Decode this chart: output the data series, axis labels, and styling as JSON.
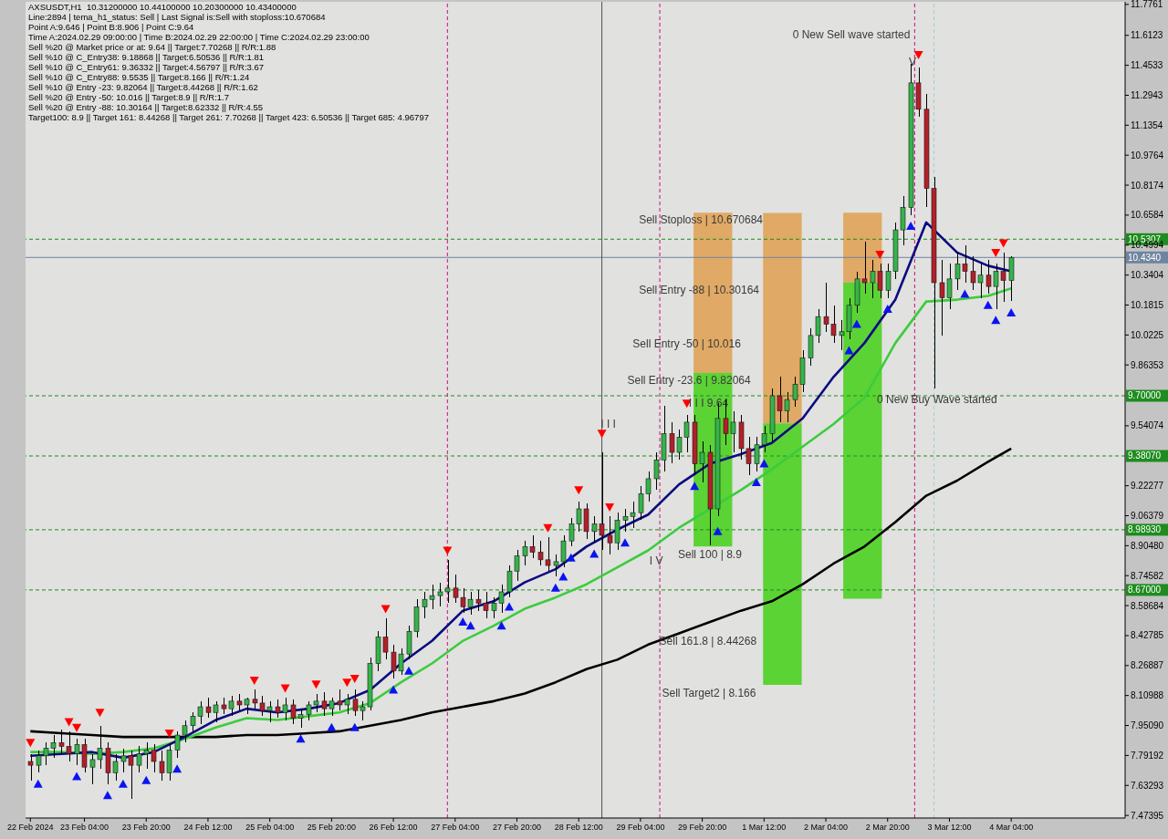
{
  "chart_data": {
    "type": "candlestick",
    "title": "AXSUSDT,H1  10.31200000 10.44100000 10.20300000 10.43400000",
    "subtitle": "Line:2894 | tema_h1_status: Sell | Last Signal is:Sell with stoploss:10.670684\nPoint A:9.646 | Point B:8.906 | Point C:9.64\nTime A:2024.02.29 09:00:00 | Time B:2024.02.29 22:00:00 | Time C:2024.02.29 23:00:00\nSell %20 @ Market price or at: 9.64 || Target:7.70268 || R/R:1.88\nSell %10 @ C_Entry38: 9.18868 || Target:6.50536 || R/R:1.81\nSell %10 @ C_Entry61: 9.36332 || Target:4.56797 || R/R:3.67\nSell %10 @ C_Entry88: 9.5535 || Target:8.166 || R/R:1.24\nSell %10 @ Entry -23: 9.82064 || Target:8.44268 || R/R:1.62\nSell %20 @ Entry -50: 10.016 || Target:8.9 || R/R:1.7\nSell %20 @ Entry -88: 10.30164 || Target:8.62332 || R/R:4.55\nTarget100: 8.9 || Target 161: 8.44268 || Target 261: 7.70268 || Target 423: 6.50536 || Target 685: 4.96797",
    "annotations": [
      "0 New Sell wave started",
      "Sell Stoploss | 10.670684",
      "Sell Entry -88 | 10.30164",
      "Sell Entry -50 | 10.016",
      "Sell Entry -23.6 | 9.82064",
      "I I I",
      "I V",
      "Sell 100 | 8.9",
      "Sell 161.8 | 8.44268",
      "Sell Target2 | 8.166",
      {
        "text": "V",
        "x": "2024-03-03T01:30",
        "y": 11.47
      },
      {
        "text": "0 New Buy Wave started",
        "x": "2024-03-02T17:15",
        "y": 9.68
      },
      {
        "text": "I I I 9.64",
        "x": "2024-02-29T16:30",
        "y": 9.66
      }
    ],
    "x": [
      "2024-02-22T14:00",
      "2024-02-22T16:00",
      "2024-02-22T18:00",
      "2024-02-22T20:00",
      "2024-02-22T22:00",
      "2024-02-23T00:00",
      "2024-02-23T02:00",
      "2024-02-23T04:00",
      "2024-02-23T06:00",
      "2024-02-23T08:00",
      "2024-02-23T10:00",
      "2024-02-23T12:00",
      "2024-02-23T14:00",
      "2024-02-23T16:00",
      "2024-02-23T18:00",
      "2024-02-23T20:00",
      "2024-02-23T22:00",
      "2024-02-24T00:00",
      "2024-02-24T02:00",
      "2024-02-24T04:00",
      "2024-02-24T06:00",
      "2024-02-24T08:00",
      "2024-02-24T10:00",
      "2024-02-24T12:00",
      "2024-02-24T14:00",
      "2024-02-24T16:00",
      "2024-02-24T18:00",
      "2024-02-24T20:00",
      "2024-02-24T22:00",
      "2024-02-25T00:00",
      "2024-02-25T02:00",
      "2024-02-25T04:00",
      "2024-02-25T06:00",
      "2024-02-25T08:00",
      "2024-02-25T10:00",
      "2024-02-25T12:00",
      "2024-02-25T14:00",
      "2024-02-25T16:00",
      "2024-02-25T18:00",
      "2024-02-25T20:00",
      "2024-02-25T22:00",
      "2024-02-26T00:00",
      "2024-02-26T02:00",
      "2024-02-26T04:00",
      "2024-02-26T06:00",
      "2024-02-26T08:00",
      "2024-02-26T10:00",
      "2024-02-26T12:00",
      "2024-02-26T14:00",
      "2024-02-26T16:00",
      "2024-02-26T18:00",
      "2024-02-26T20:00",
      "2024-02-26T22:00",
      "2024-02-27T00:00",
      "2024-02-27T02:00",
      "2024-02-27T04:00",
      "2024-02-27T06:00",
      "2024-02-27T08:00",
      "2024-02-27T10:00",
      "2024-02-27T12:00",
      "2024-02-27T14:00",
      "2024-02-27T16:00",
      "2024-02-27T18:00",
      "2024-02-27T20:00",
      "2024-02-27T22:00",
      "2024-02-28T00:00",
      "2024-02-28T02:00",
      "2024-02-28T04:00",
      "2024-02-28T06:00",
      "2024-02-28T08:00",
      "2024-02-28T10:00",
      "2024-02-28T12:00",
      "2024-02-28T14:00",
      "2024-02-28T16:00",
      "2024-02-28T18:00",
      "2024-02-28T20:00",
      "2024-02-28T22:00",
      "2024-02-29T00:00",
      "2024-02-29T02:00",
      "2024-02-29T04:00",
      "2024-02-29T06:00",
      "2024-02-29T08:00",
      "2024-02-29T10:00",
      "2024-02-29T12:00",
      "2024-02-29T14:00",
      "2024-02-29T16:00",
      "2024-02-29T18:00",
      "2024-02-29T20:00",
      "2024-02-29T22:00",
      "2024-03-01T00:00",
      "2024-03-01T02:00",
      "2024-03-01T04:00",
      "2024-03-01T06:00",
      "2024-03-01T08:00",
      "2024-03-01T10:00",
      "2024-03-01T12:00",
      "2024-03-01T14:00",
      "2024-03-01T16:00",
      "2024-03-01T18:00",
      "2024-03-01T20:00",
      "2024-03-01T22:00",
      "2024-03-02T00:00",
      "2024-03-02T02:00",
      "2024-03-02T04:00",
      "2024-03-02T06:00",
      "2024-03-02T08:00",
      "2024-03-02T10:00",
      "2024-03-02T12:00",
      "2024-03-02T14:00",
      "2024-03-02T16:00",
      "2024-03-02T18:00",
      "2024-03-02T20:00",
      "2024-03-02T22:00",
      "2024-03-03T00:00",
      "2024-03-03T02:00",
      "2024-03-03T04:00",
      "2024-03-03T06:00",
      "2024-03-03T08:00",
      "2024-03-03T10:00",
      "2024-03-03T12:00",
      "2024-03-03T14:00",
      "2024-03-03T16:00",
      "2024-03-03T18:00",
      "2024-03-03T20:00",
      "2024-03-03T22:00",
      "2024-03-04T00:00",
      "2024-03-04T02:00",
      "2024-03-04T04:00"
    ],
    "ohlc": [
      [
        7.76,
        7.8,
        7.66,
        7.74
      ],
      [
        7.74,
        7.82,
        7.7,
        7.79
      ],
      [
        7.79,
        7.86,
        7.74,
        7.83
      ],
      [
        7.83,
        7.9,
        7.78,
        7.86
      ],
      [
        7.86,
        7.93,
        7.8,
        7.84
      ],
      [
        7.84,
        7.92,
        7.76,
        7.8
      ],
      [
        7.8,
        7.88,
        7.74,
        7.85
      ],
      [
        7.85,
        7.88,
        7.7,
        7.73
      ],
      [
        7.73,
        7.8,
        7.64,
        7.77
      ],
      [
        7.77,
        7.95,
        7.72,
        7.83
      ],
      [
        7.83,
        7.86,
        7.64,
        7.7
      ],
      [
        7.7,
        7.8,
        7.66,
        7.76
      ],
      [
        7.76,
        7.83,
        7.7,
        7.79
      ],
      [
        7.79,
        7.82,
        7.56,
        7.74
      ],
      [
        7.74,
        7.84,
        7.7,
        7.8
      ],
      [
        7.8,
        7.86,
        7.72,
        7.82
      ],
      [
        7.82,
        7.85,
        7.7,
        7.76
      ],
      [
        7.76,
        7.82,
        7.66,
        7.7
      ],
      [
        7.7,
        7.85,
        7.66,
        7.82
      ],
      [
        7.82,
        7.92,
        7.78,
        7.9
      ],
      [
        7.9,
        7.98,
        7.86,
        7.95
      ],
      [
        7.95,
        8.02,
        7.92,
        8
      ],
      [
        8,
        8.08,
        7.96,
        8.05
      ],
      [
        8.05,
        8.1,
        7.99,
        8.02
      ],
      [
        8.02,
        8.08,
        7.97,
        8.06
      ],
      [
        8.06,
        8.1,
        8.01,
        8.04
      ],
      [
        8.04,
        8.11,
        8,
        8.08
      ],
      [
        8.08,
        8.12,
        8.03,
        8.06
      ],
      [
        8.06,
        8.1,
        8.01,
        8.09
      ],
      [
        8.09,
        8.14,
        8.04,
        8.07
      ],
      [
        8.07,
        8.11,
        8,
        8.03
      ],
      [
        8.03,
        8.08,
        7.97,
        8.05
      ],
      [
        8.05,
        8.09,
        7.99,
        8.02
      ],
      [
        8.02,
        8.1,
        7.98,
        8.06
      ],
      [
        8.06,
        8.09,
        7.96,
        7.99
      ],
      [
        7.99,
        8.04,
        7.94,
        8.01
      ],
      [
        8.01,
        8.08,
        7.98,
        8.06
      ],
      [
        8.06,
        8.12,
        8.02,
        8.08
      ],
      [
        8.08,
        8.13,
        8,
        8.04
      ],
      [
        8.04,
        8.1,
        8,
        8.08
      ],
      [
        8.08,
        8.14,
        8.03,
        8.06
      ],
      [
        8.06,
        8.12,
        8.01,
        8.09
      ],
      [
        8.09,
        8.14,
        8,
        8.03
      ],
      [
        8.03,
        8.08,
        7.98,
        8.05
      ],
      [
        8.05,
        8.31,
        8.03,
        8.28
      ],
      [
        8.28,
        8.45,
        8.24,
        8.42
      ],
      [
        8.42,
        8.52,
        8.3,
        8.34
      ],
      [
        8.34,
        8.38,
        8.2,
        8.24
      ],
      [
        8.24,
        8.36,
        8.22,
        8.33
      ],
      [
        8.33,
        8.48,
        8.3,
        8.45
      ],
      [
        8.45,
        8.62,
        8.42,
        8.58
      ],
      [
        8.58,
        8.66,
        8.52,
        8.62
      ],
      [
        8.62,
        8.7,
        8.57,
        8.64
      ],
      [
        8.64,
        8.71,
        8.58,
        8.66
      ],
      [
        8.66,
        8.83,
        8.6,
        8.68
      ],
      [
        8.68,
        8.75,
        8.6,
        8.63
      ],
      [
        8.63,
        8.68,
        8.55,
        8.58
      ],
      [
        8.58,
        8.66,
        8.54,
        8.62
      ],
      [
        8.62,
        8.67,
        8.56,
        8.6
      ],
      [
        8.6,
        8.66,
        8.52,
        8.56
      ],
      [
        8.56,
        8.63,
        8.52,
        8.6
      ],
      [
        8.6,
        8.7,
        8.55,
        8.66
      ],
      [
        8.66,
        8.8,
        8.63,
        8.77
      ],
      [
        8.77,
        8.88,
        8.72,
        8.85
      ],
      [
        8.85,
        8.93,
        8.8,
        8.9
      ],
      [
        8.9,
        8.96,
        8.84,
        8.87
      ],
      [
        8.87,
        8.93,
        8.8,
        8.83
      ],
      [
        8.83,
        8.95,
        8.77,
        8.8
      ],
      [
        8.8,
        8.86,
        8.74,
        8.82
      ],
      [
        8.82,
        8.96,
        8.79,
        8.93
      ],
      [
        8.93,
        9.05,
        8.9,
        9.02
      ],
      [
        9.02,
        9.14,
        8.98,
        9.1
      ],
      [
        9.1,
        9.13,
        8.94,
        8.98
      ],
      [
        8.98,
        9.06,
        8.92,
        9.02
      ],
      [
        9.02,
        9.4,
        8.88,
        8.96
      ],
      [
        8.96,
        9.06,
        8.86,
        8.92
      ],
      [
        8.92,
        9.08,
        8.88,
        9.04
      ],
      [
        9.04,
        9.1,
        8.98,
        9.06
      ],
      [
        9.06,
        9.14,
        9,
        9.08
      ],
      [
        9.08,
        9.22,
        9.04,
        9.18
      ],
      [
        9.18,
        9.3,
        9.14,
        9.26
      ],
      [
        9.26,
        9.4,
        9.2,
        9.36
      ],
      [
        9.36,
        9.646,
        9.3,
        9.5
      ],
      [
        9.5,
        9.56,
        9.34,
        9.4
      ],
      [
        9.4,
        9.52,
        9.36,
        9.48
      ],
      [
        9.48,
        9.6,
        9.4,
        9.56
      ],
      [
        9.56,
        9.6,
        9.28,
        9.34
      ],
      [
        9.34,
        9.46,
        9.24,
        9.4
      ],
      [
        9.4,
        9.44,
        8.906,
        9.1
      ],
      [
        9.1,
        9.66,
        9.06,
        9.58
      ],
      [
        9.58,
        9.68,
        9.44,
        9.5
      ],
      [
        9.5,
        9.62,
        9.4,
        9.56
      ],
      [
        9.56,
        9.6,
        9.36,
        9.42
      ],
      [
        9.42,
        9.48,
        9.28,
        9.34
      ],
      [
        9.34,
        9.48,
        9.3,
        9.44
      ],
      [
        9.44,
        9.54,
        9.4,
        9.5
      ],
      [
        9.5,
        9.74,
        9.46,
        9.7
      ],
      [
        9.7,
        9.8,
        9.56,
        9.62
      ],
      [
        9.62,
        9.72,
        9.56,
        9.68
      ],
      [
        9.68,
        9.8,
        9.64,
        9.76
      ],
      [
        9.76,
        9.94,
        9.72,
        9.9
      ],
      [
        9.9,
        10.06,
        9.86,
        10.02
      ],
      [
        10.02,
        10.16,
        9.98,
        10.12
      ],
      [
        10.12,
        10.3,
        10.04,
        10.08
      ],
      [
        10.08,
        10.18,
        9.98,
        10.02
      ],
      [
        10.02,
        10.1,
        9.94,
        10.04
      ],
      [
        10.04,
        10.22,
        10,
        10.18
      ],
      [
        10.18,
        10.36,
        10.14,
        10.32
      ],
      [
        10.32,
        10.52,
        10.24,
        10.3
      ],
      [
        10.3,
        10.42,
        10.22,
        10.36
      ],
      [
        10.36,
        10.4,
        10.22,
        10.26
      ],
      [
        10.26,
        10.4,
        10.22,
        10.36
      ],
      [
        10.36,
        10.62,
        10.32,
        10.58
      ],
      [
        10.58,
        10.76,
        10.5,
        10.7
      ],
      [
        10.7,
        11.46,
        10.66,
        11.36
      ],
      [
        11.36,
        11.44,
        11.18,
        11.22
      ],
      [
        11.22,
        11.3,
        10.7,
        10.8
      ],
      [
        10.8,
        10.86,
        9.74,
        10.3
      ],
      [
        10.3,
        10.42,
        10.02,
        10.22
      ],
      [
        10.22,
        10.4,
        10.16,
        10.32
      ],
      [
        10.32,
        10.46,
        10.26,
        10.4
      ],
      [
        10.4,
        10.5,
        10.3,
        10.36
      ],
      [
        10.36,
        10.44,
        10.26,
        10.3
      ],
      [
        10.3,
        10.4,
        10.22,
        10.34
      ],
      [
        10.34,
        10.42,
        10.24,
        10.28
      ],
      [
        10.28,
        10.4,
        10.16,
        10.36
      ],
      [
        10.36,
        10.46,
        10.2,
        10.312
      ],
      [
        10.312,
        10.441,
        10.203,
        10.434
      ]
    ],
    "series": [
      {
        "type": "bar",
        "color": "#e0a45a",
        "x": [
          "2024-02-29T22:45",
          "2024-03-01T16:45",
          "2024-03-02T13:30"
        ],
        "base": [
          9.82064,
          9.5535,
          10.30164
        ],
        "values": [
          0.85,
          1.117,
          0.369
        ]
      },
      {
        "type": "bar",
        "color": "#4fd126",
        "x": [
          "2024-02-29T22:45",
          "2024-03-01T16:45",
          "2024-03-02T13:30"
        ],
        "base": [
          8.9,
          8.166,
          8.62332
        ],
        "values": [
          0.921,
          1.388,
          1.678
        ]
      },
      {
        "type": "line",
        "color": "#000000",
        "x": [
          "2024-02-22T14:00",
          "2024-02-22T22:00",
          "2024-02-23T06:00",
          "2024-02-23T14:00",
          "2024-02-23T22:00",
          "2024-02-24T06:00",
          "2024-02-24T14:00",
          "2024-02-24T22:00",
          "2024-02-25T06:00",
          "2024-02-25T14:00",
          "2024-02-25T22:00",
          "2024-02-26T06:00",
          "2024-02-26T14:00",
          "2024-02-26T22:00",
          "2024-02-27T06:00",
          "2024-02-27T14:00",
          "2024-02-27T22:00",
          "2024-02-28T06:00",
          "2024-02-28T14:00",
          "2024-02-28T22:00",
          "2024-02-29T06:00",
          "2024-02-29T14:00",
          "2024-02-29T22:00",
          "2024-03-01T06:00",
          "2024-03-01T14:00",
          "2024-03-01T22:00",
          "2024-03-02T06:00",
          "2024-03-02T14:00",
          "2024-03-02T22:00",
          "2024-03-03T06:00",
          "2024-03-03T14:00",
          "2024-03-03T22:00",
          "2024-03-04T04:00"
        ],
        "values": [
          7.92,
          7.91,
          7.9,
          7.89,
          7.89,
          7.89,
          7.89,
          7.9,
          7.9,
          7.91,
          7.92,
          7.95,
          7.98,
          8.02,
          8.05,
          8.08,
          8.12,
          8.18,
          8.25,
          8.3,
          8.38,
          8.44,
          8.5,
          8.56,
          8.61,
          8.7,
          8.81,
          8.9,
          9.03,
          9.17,
          9.25,
          9.35,
          9.42
        ]
      },
      {
        "type": "line",
        "color": "#3ccc3c",
        "x": [
          "2024-02-22T14:00",
          "2024-02-22T22:00",
          "2024-02-23T06:00",
          "2024-02-23T14:00",
          "2024-02-23T22:00",
          "2024-02-24T06:00",
          "2024-02-24T14:00",
          "2024-02-24T22:00",
          "2024-02-25T06:00",
          "2024-02-25T14:00",
          "2024-02-25T22:00",
          "2024-02-26T06:00",
          "2024-02-26T14:00",
          "2024-02-26T22:00",
          "2024-02-27T06:00",
          "2024-02-27T14:00",
          "2024-02-27T22:00",
          "2024-02-28T06:00",
          "2024-02-28T14:00",
          "2024-02-28T22:00",
          "2024-02-29T06:00",
          "2024-02-29T14:00",
          "2024-02-29T22:00",
          "2024-03-01T06:00",
          "2024-03-01T14:00",
          "2024-03-01T22:00",
          "2024-03-02T06:00",
          "2024-03-02T14:00",
          "2024-03-02T22:00",
          "2024-03-03T06:00",
          "2024-03-03T14:00",
          "2024-03-03T22:00",
          "2024-03-04T04:00"
        ],
        "values": [
          7.81,
          7.81,
          7.8,
          7.81,
          7.83,
          7.88,
          7.94,
          7.99,
          7.98,
          8,
          8.02,
          8.07,
          8.18,
          8.28,
          8.4,
          8.48,
          8.57,
          8.63,
          8.7,
          8.79,
          8.88,
          9,
          9.1,
          9.2,
          9.31,
          9.43,
          9.55,
          9.69,
          9.98,
          10.2,
          10.21,
          10.23,
          10.27
        ]
      },
      {
        "type": "line",
        "color": "#0b0b80",
        "x": [
          "2024-02-22T14:00",
          "2024-02-22T22:00",
          "2024-02-23T06:00",
          "2024-02-23T14:00",
          "2024-02-23T22:00",
          "2024-02-24T06:00",
          "2024-02-24T14:00",
          "2024-02-24T22:00",
          "2024-02-25T06:00",
          "2024-02-25T14:00",
          "2024-02-25T22:00",
          "2024-02-26T06:00",
          "2024-02-26T14:00",
          "2024-02-26T22:00",
          "2024-02-27T06:00",
          "2024-02-27T14:00",
          "2024-02-27T22:00",
          "2024-02-28T06:00",
          "2024-02-28T14:00",
          "2024-02-28T22:00",
          "2024-02-29T06:00",
          "2024-02-29T14:00",
          "2024-02-29T22:00",
          "2024-03-01T06:00",
          "2024-03-01T14:00",
          "2024-03-01T22:00",
          "2024-03-02T06:00",
          "2024-03-02T14:00",
          "2024-03-02T22:00",
          "2024-03-03T06:00",
          "2024-03-03T14:00",
          "2024-03-03T22:00",
          "2024-03-04T04:00"
        ],
        "values": [
          7.79,
          7.8,
          7.81,
          7.78,
          7.81,
          7.89,
          7.98,
          8.04,
          8.02,
          8.04,
          8.07,
          8.14,
          8.28,
          8.4,
          8.56,
          8.61,
          8.71,
          8.78,
          8.9,
          8.99,
          9.07,
          9.23,
          9.34,
          9.39,
          9.45,
          9.58,
          9.8,
          9.98,
          10.21,
          10.62,
          10.46,
          10.39,
          10.36
        ]
      },
      {
        "type": "scatter",
        "color": "#ff0000",
        "marker": "triangle",
        "x": [
          "2024-02-22T14:00",
          "2024-02-23T00:00",
          "2024-02-23T02:00",
          "2024-02-23T08:00",
          "2024-02-24T02:00",
          "2024-02-25T00:00",
          "2024-02-25T08:00",
          "2024-02-25T16:00",
          "2024-02-26T00:00",
          "2024-02-26T02:00",
          "2024-02-26T10:00",
          "2024-02-27T02:00",
          "2024-02-28T04:00",
          "2024-02-28T12:00",
          "2024-02-28T18:00",
          "2024-02-28T20:00",
          "2024-02-29T16:00",
          "2024-03-02T18:00",
          "2024-03-03T04:00",
          "2024-03-04T00:00",
          "2024-03-04T02:00"
        ],
        "values": [
          7.86,
          7.97,
          7.94,
          8.02,
          7.91,
          8.19,
          8.15,
          8.17,
          8.18,
          8.2,
          8.57,
          8.88,
          9.0,
          9.2,
          9.5,
          9.11,
          9.66,
          10.45,
          11.51,
          10.46,
          10.51
        ]
      },
      {
        "type": "scatter",
        "color": "#0a14f0",
        "marker": "triangle",
        "x": [
          "2024-02-22T16:00",
          "2024-02-23T02:00",
          "2024-02-23T10:00",
          "2024-02-23T14:00",
          "2024-02-23T20:00",
          "2024-02-24T04:00",
          "2024-02-25T12:00",
          "2024-02-25T20:00",
          "2024-02-26T02:00",
          "2024-02-26T12:00",
          "2024-02-26T16:00",
          "2024-02-27T06:00",
          "2024-02-27T08:00",
          "2024-02-27T16:00",
          "2024-02-27T18:00",
          "2024-02-28T06:00",
          "2024-02-28T08:00",
          "2024-02-28T10:00",
          "2024-02-28T16:00",
          "2024-02-29T00:00",
          "2024-02-29T18:00",
          "2024-03-01T00:00",
          "2024-03-01T10:00",
          "2024-03-01T12:00",
          "2024-03-02T10:00",
          "2024-03-02T12:00",
          "2024-03-02T20:00",
          "2024-03-03T02:00",
          "2024-03-03T16:00",
          "2024-03-03T22:00",
          "2024-03-04T00:00",
          "2024-03-04T04:00"
        ],
        "values": [
          7.64,
          7.68,
          7.58,
          7.64,
          7.66,
          7.72,
          7.88,
          7.94,
          7.94,
          8.14,
          8.24,
          8.5,
          8.48,
          8.48,
          8.58,
          8.68,
          8.74,
          8.84,
          8.86,
          8.92,
          9.22,
          8.98,
          9.24,
          9.34,
          9.94,
          10.08,
          10.16,
          10.6,
          10.24,
          10.18,
          10.1,
          10.14
        ]
      }
    ],
    "xlim": [
      "2024-02-22T12:45",
      "2024-03-05T09:30"
    ],
    "xticks": [
      {
        "value": "2024-02-22T14:00",
        "label": "22 Feb 2024"
      },
      {
        "value": "2024-02-23T04:00",
        "label": "23 Feb 04:00"
      },
      {
        "value": "2024-02-23T20:00",
        "label": "23 Feb 20:00"
      },
      {
        "value": "2024-02-24T12:00",
        "label": "24 Feb 12:00"
      },
      {
        "value": "2024-02-25T04:00",
        "label": "25 Feb 04:00"
      },
      {
        "value": "2024-02-25T20:00",
        "label": "25 Feb 20:00"
      },
      {
        "value": "2024-02-26T12:00",
        "label": "26 Feb 12:00"
      },
      {
        "value": "2024-02-27T04:00",
        "label": "27 Feb 04:00"
      },
      {
        "value": "2024-02-27T20:00",
        "label": "27 Feb 20:00"
      },
      {
        "value": "2024-02-28T12:00",
        "label": "28 Feb 12:00"
      },
      {
        "value": "2024-02-29T04:00",
        "label": "29 Feb 04:00"
      },
      {
        "value": "2024-02-29T20:00",
        "label": "29 Feb 20:00"
      },
      {
        "value": "2024-03-01T12:00",
        "label": "1 Mar 12:00"
      },
      {
        "value": "2024-03-02T04:00",
        "label": "2 Mar 04:00"
      },
      {
        "value": "2024-03-02T20:00",
        "label": "2 Mar 20:00"
      },
      {
        "value": "2024-03-03T12:00",
        "label": "3 Mar 12:00"
      },
      {
        "value": "2024-03-04T04:00",
        "label": "4 Mar 04:00"
      }
    ],
    "ylim": [
      7.46,
      11.79
    ],
    "yticks": [
      11.7761,
      11.6123,
      11.4533,
      11.2943,
      11.1354,
      10.9764,
      10.8174,
      10.6584,
      10.4994,
      10.3404,
      10.1815,
      10.0225,
      9.86353,
      9.54074,
      9.22277,
      9.06379,
      {
        "value": 8.9048,
        "label": "8.90480"
      },
      8.74582,
      8.58684,
      8.42785,
      8.26887,
      8.10988,
      {
        "value": 7.9509,
        "label": "7.95090"
      },
      7.79192,
      7.63293,
      7.47395
    ],
    "ref_lines": [
      {
        "axis": "y",
        "value": 10.5307,
        "label": "10.5307",
        "color": "#1e8c1e",
        "line_style": "dashed"
      },
      {
        "axis": "y",
        "value": 10.434,
        "label": "10.4340",
        "color": "#6f84a0",
        "line_style": "solid"
      },
      {
        "axis": "y",
        "value": 9.7,
        "label": "9.70000",
        "color": "#1e8c1e",
        "line_style": "dashed"
      },
      {
        "axis": "y",
        "value": 9.3807,
        "label": "9.38070",
        "color": "#1e8c1e",
        "line_style": "dashed"
      },
      {
        "axis": "y",
        "value": 8.9893,
        "label": "8.98930",
        "color": "#1e8c1e",
        "line_style": "dashed"
      },
      {
        "axis": "y",
        "value": 8.67,
        "label": "8.67000",
        "color": "#1e8c1e",
        "line_style": "dashed"
      },
      {
        "axis": "x",
        "value": "2024-02-27T02:00",
        "color": "#c8107c",
        "line_style": "dashed"
      },
      {
        "axis": "x",
        "value": "2024-02-28T18:00",
        "color": "#505050",
        "line_style": "solid"
      },
      {
        "axis": "x",
        "value": "2024-02-29T09:00",
        "color": "#c8107c",
        "line_style": "dashed"
      },
      {
        "axis": "x",
        "value": "2024-03-03T03:00",
        "color": "#c8107c",
        "line_style": "dashed"
      },
      {
        "axis": "x",
        "value": "2024-03-03T08:00",
        "color": "#9ccfd8",
        "line_style": "dashed"
      }
    ]
  }
}
